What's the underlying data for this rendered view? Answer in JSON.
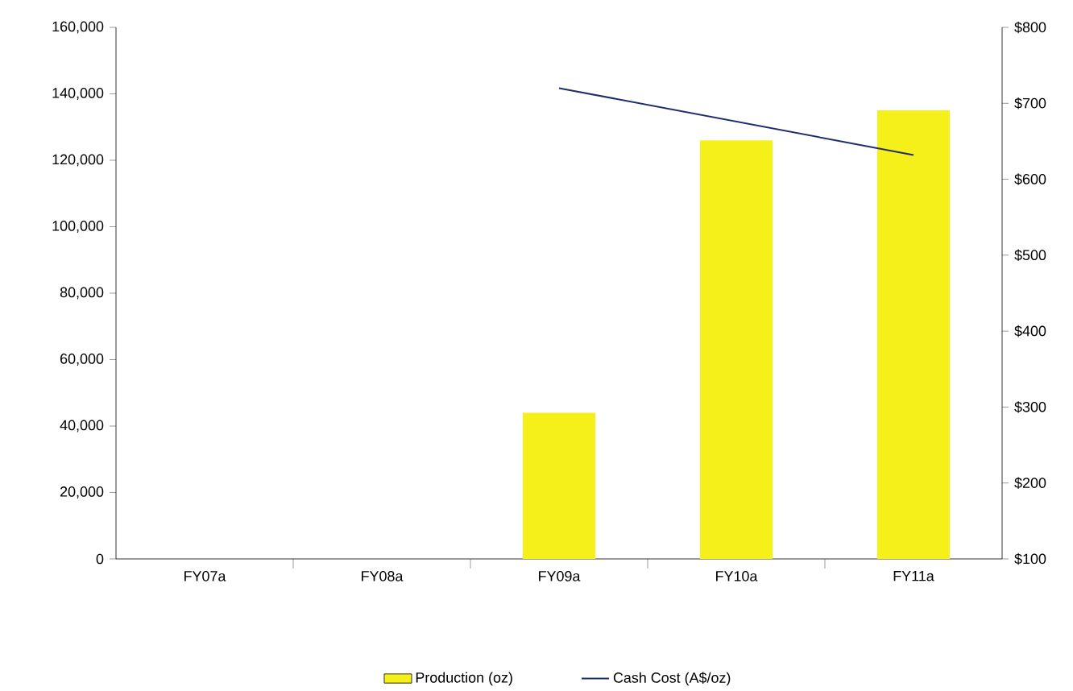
{
  "chart_data": {
    "type": "bar",
    "categories": [
      "FY07a",
      "FY08a",
      "FY09a",
      "FY10a",
      "FY11a"
    ],
    "series": [
      {
        "name": "Production (oz)",
        "color": "#f5f01a",
        "values": [
          null,
          null,
          44000,
          126000,
          135000
        ]
      },
      {
        "name": "Cash Cost (A$/oz)",
        "type": "line",
        "axis": "y2",
        "color": "#1f2d6b",
        "values": [
          null,
          null,
          720,
          676,
          632
        ]
      }
    ],
    "ylim": [
      0,
      160000
    ],
    "yticks": [
      {
        "value": 0,
        "label": "0"
      },
      {
        "value": 20000,
        "label": "20,000"
      },
      {
        "value": 40000,
        "label": "40,000"
      },
      {
        "value": 60000,
        "label": "60,000"
      },
      {
        "value": 80000,
        "label": "80,000"
      },
      {
        "value": 100000,
        "label": "100,000"
      },
      {
        "value": 120000,
        "label": "120,000"
      },
      {
        "value": 140000,
        "label": "140,000"
      },
      {
        "value": 160000,
        "label": "160,000"
      }
    ],
    "y2lim": [
      100,
      800
    ],
    "y2ticks": [
      {
        "value": 100,
        "label": "$100"
      },
      {
        "value": 200,
        "label": "$200"
      },
      {
        "value": 300,
        "label": "$300"
      },
      {
        "value": 400,
        "label": "$400"
      },
      {
        "value": 500,
        "label": "$500"
      },
      {
        "value": 600,
        "label": "$600"
      },
      {
        "value": 700,
        "label": "$700"
      },
      {
        "value": 800,
        "label": "$800"
      }
    ],
    "grid": false,
    "legend": "bottom",
    "marker": "none",
    "line_style": "solid"
  }
}
